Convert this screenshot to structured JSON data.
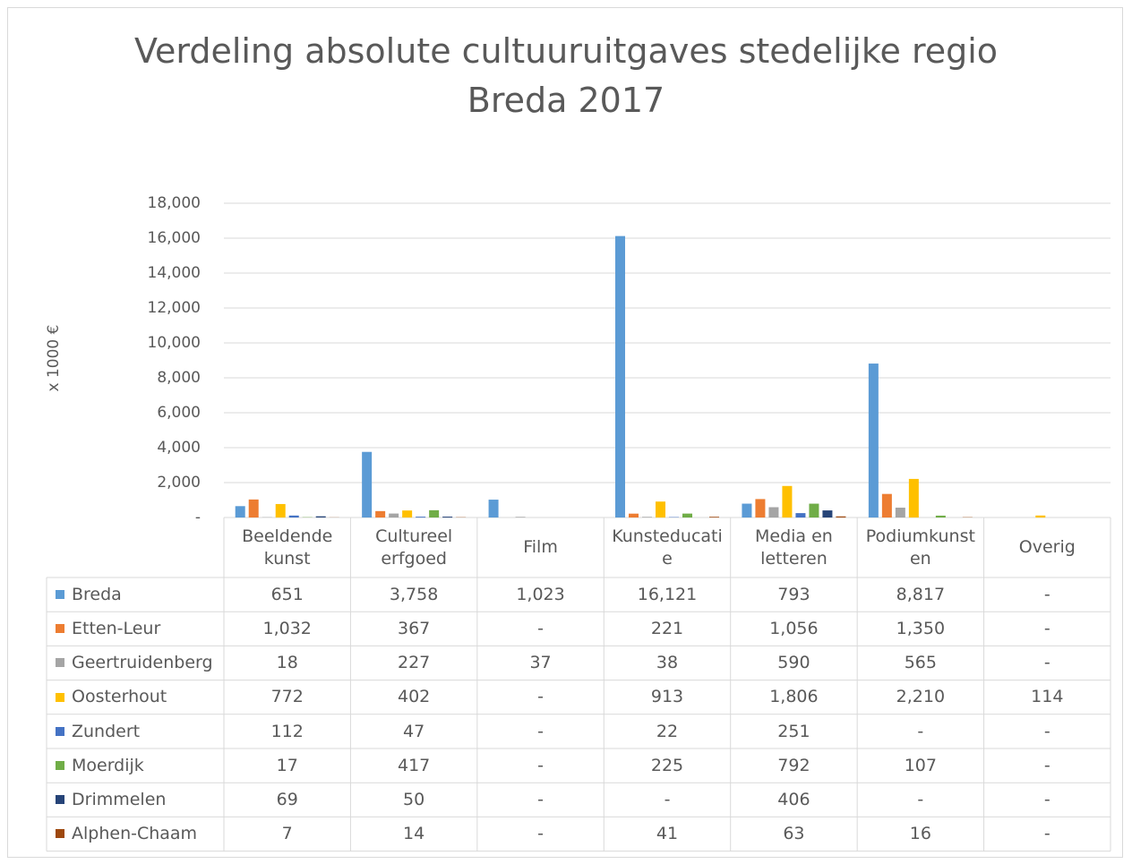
{
  "chart_data": {
    "type": "bar",
    "title": "Verdeling absolute cultuuruitgaves stedelijke regio Breda 2017",
    "y_label": "x 1000 €",
    "categories": [
      "Beeldende kunst",
      "Cultureel erfgoed",
      "Film",
      "Kunsteducatie",
      "Media en letteren",
      "Podiumkunsten",
      "Overig"
    ],
    "ylim": [
      0,
      18000
    ],
    "yticks": [
      {
        "value": 0,
        "label": "-"
      },
      {
        "value": 2000,
        "label": "2,000"
      },
      {
        "value": 4000,
        "label": "4,000"
      },
      {
        "value": 6000,
        "label": "6,000"
      },
      {
        "value": 8000,
        "label": "8,000"
      },
      {
        "value": 10000,
        "label": "10,000"
      },
      {
        "value": 12000,
        "label": "12,000"
      },
      {
        "value": 14000,
        "label": "14,000"
      },
      {
        "value": 16000,
        "label": "16,000"
      },
      {
        "value": 18000,
        "label": "18,000"
      }
    ],
    "grid": true,
    "series": [
      {
        "name": "Breda",
        "color": "#5b9bd5",
        "values": [
          651,
          3758,
          1023,
          16121,
          793,
          8817,
          null
        ],
        "value_labels": [
          "651",
          "3,758",
          "1,023",
          "16,121",
          "793",
          "8,817",
          "-"
        ]
      },
      {
        "name": "Etten-Leur",
        "color": "#ed7d31",
        "values": [
          1032,
          367,
          null,
          221,
          1056,
          1350,
          null
        ],
        "value_labels": [
          "1,032",
          "367",
          "-",
          "221",
          "1,056",
          "1,350",
          "-"
        ]
      },
      {
        "name": "Geertruidenberg",
        "color": "#a5a5a5",
        "values": [
          18,
          227,
          37,
          38,
          590,
          565,
          null
        ],
        "value_labels": [
          "18",
          "227",
          "37",
          "38",
          "590",
          "565",
          "-"
        ]
      },
      {
        "name": "Oosterhout",
        "color": "#ffc000",
        "values": [
          772,
          402,
          null,
          913,
          1806,
          2210,
          114
        ],
        "value_labels": [
          "772",
          "402",
          "-",
          "913",
          "1,806",
          "2,210",
          "114"
        ]
      },
      {
        "name": "Zundert",
        "color": "#4472c4",
        "values": [
          112,
          47,
          null,
          22,
          251,
          null,
          null
        ],
        "value_labels": [
          "112",
          "47",
          "-",
          "22",
          "251",
          "-",
          "-"
        ]
      },
      {
        "name": "Moerdijk",
        "color": "#70ad47",
        "values": [
          17,
          417,
          null,
          225,
          792,
          107,
          null
        ],
        "value_labels": [
          "17",
          "417",
          "-",
          "225",
          "792",
          "107",
          "-"
        ]
      },
      {
        "name": "Drimmelen",
        "color": "#264478",
        "values": [
          69,
          50,
          null,
          null,
          406,
          null,
          null
        ],
        "value_labels": [
          "69",
          "50",
          "-",
          "-",
          "406",
          "-",
          "-"
        ]
      },
      {
        "name": "Alphen-Chaam",
        "color": "#9e480e",
        "values": [
          7,
          14,
          null,
          41,
          63,
          16,
          null
        ],
        "value_labels": [
          "7",
          "14",
          "-",
          "41",
          "63",
          "16",
          "-"
        ]
      }
    ]
  }
}
